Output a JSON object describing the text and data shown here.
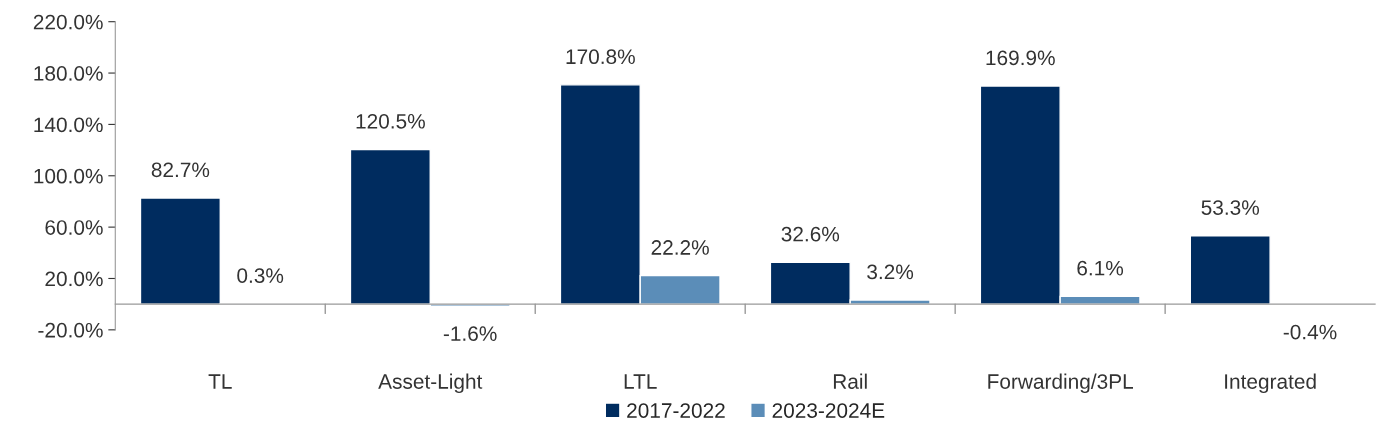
{
  "chart_data": {
    "type": "bar",
    "categories": [
      "TL",
      "Asset-Light",
      "LTL",
      "Rail",
      "Forwarding/3PL",
      "Integrated"
    ],
    "series": [
      {
        "name": "2017-2022",
        "color": "#002c5f",
        "values": [
          82.7,
          120.5,
          170.8,
          32.6,
          169.9,
          53.3
        ],
        "value_labels": [
          "82.7%",
          "120.5%",
          "170.8%",
          "32.6%",
          "169.9%",
          "53.3%"
        ]
      },
      {
        "name": "2023-2024E",
        "color": "#5b8db8",
        "values": [
          0.3,
          -1.6,
          22.2,
          3.2,
          6.1,
          -0.4
        ],
        "value_labels": [
          "0.3%",
          "-1.6%",
          "22.2%",
          "3.2%",
          "6.1%",
          "-0.4%"
        ]
      }
    ],
    "ylim": [
      -20,
      220
    ],
    "yticks": [
      {
        "value": -20,
        "label": "-20.0%"
      },
      {
        "value": 20,
        "label": "20.0%"
      },
      {
        "value": 60,
        "label": "60.0%"
      },
      {
        "value": 100,
        "label": "100.0%"
      },
      {
        "value": 140,
        "label": "140.0%"
      },
      {
        "value": 180,
        "label": "180.0%"
      },
      {
        "value": 220,
        "label": "220.0%"
      }
    ],
    "grid": false,
    "legend": "bottom"
  }
}
